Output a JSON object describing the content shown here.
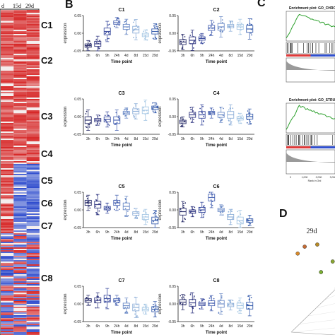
{
  "panels": {
    "B": "B",
    "C": "C",
    "D": "D"
  },
  "heatmap": {
    "column_labels": [
      "d",
      "15d",
      "29d"
    ],
    "cluster_labels": [
      "C1",
      "C2",
      "C3",
      "C4",
      "C5",
      "C6",
      "C7",
      "C8"
    ]
  },
  "gsea": {
    "titles": [
      "Enrichment plot: GO_CHRO",
      "Enrichment plot: GO_STRUCTURE_SPECI"
    ],
    "x_ticks": [
      "0",
      "1,000",
      "2,000",
      "3,000"
    ],
    "x_label": "Rank in Ord",
    "colors": {
      "curve": "#2ca02c",
      "ranking_pos": "#e03a3a",
      "ranking_neg": "#3050d0"
    }
  },
  "pca": {
    "label": "29d",
    "points": [
      {
        "x": 0.2,
        "y": 0.75,
        "color": "#d98a2a"
      },
      {
        "x": 0.62,
        "y": 0.92,
        "color": "#b78a25"
      },
      {
        "x": 0.35,
        "y": 0.88,
        "color": "#c46a32"
      },
      {
        "x": 0.95,
        "y": 0.6,
        "color": "#8aa632"
      },
      {
        "x": 0.7,
        "y": 0.4,
        "color": "#7ab030"
      }
    ]
  },
  "chart_data": {
    "type": "boxplot",
    "xlabel": "Time point",
    "ylabel": "expression",
    "categories": [
      "3h",
      "6h",
      "9h",
      "24h",
      "4d",
      "8d",
      "15d",
      "29d"
    ],
    "ylim": [
      -0.05,
      0.05
    ],
    "yticks": [
      -0.05,
      0.0,
      0.05
    ],
    "category_colors": [
      "#2b2f6b",
      "#353b84",
      "#3e4fa0",
      "#4f69b5",
      "#6d8cc7",
      "#8fb0d9",
      "#a9c9e5",
      "#3a5fae"
    ],
    "panels": [
      {
        "title": "C1",
        "median": [
          -0.035,
          -0.03,
          0.005,
          0.03,
          0.018,
          0.01,
          -0.005,
          0.005
        ]
      },
      {
        "title": "C2",
        "median": [
          -0.025,
          -0.02,
          -0.015,
          0.015,
          0.018,
          0.02,
          0.018,
          0.012
        ]
      },
      {
        "title": "C3",
        "median": [
          -0.01,
          -0.01,
          -0.008,
          -0.01,
          0.01,
          0.015,
          0.018,
          0.025
        ]
      },
      {
        "title": "C4",
        "median": [
          -0.015,
          0.005,
          0.005,
          0.01,
          0.005,
          0.005,
          -0.005,
          0.0
        ]
      },
      {
        "title": "C5",
        "median": [
          0.02,
          0.015,
          0.005,
          0.02,
          0.01,
          -0.01,
          -0.02,
          -0.03
        ]
      },
      {
        "title": "C6",
        "median": [
          -0.005,
          -0.005,
          0.0,
          0.035,
          0.0,
          -0.02,
          -0.03,
          -0.03
        ]
      },
      {
        "title": "C7",
        "median": [
          0.01,
          0.01,
          0.015,
          0.01,
          -0.005,
          -0.01,
          -0.015,
          -0.015
        ]
      },
      {
        "title": "C8",
        "median": [
          0.005,
          0.003,
          0.0,
          0.002,
          0.0,
          -0.003,
          -0.005,
          -0.005
        ]
      }
    ]
  }
}
